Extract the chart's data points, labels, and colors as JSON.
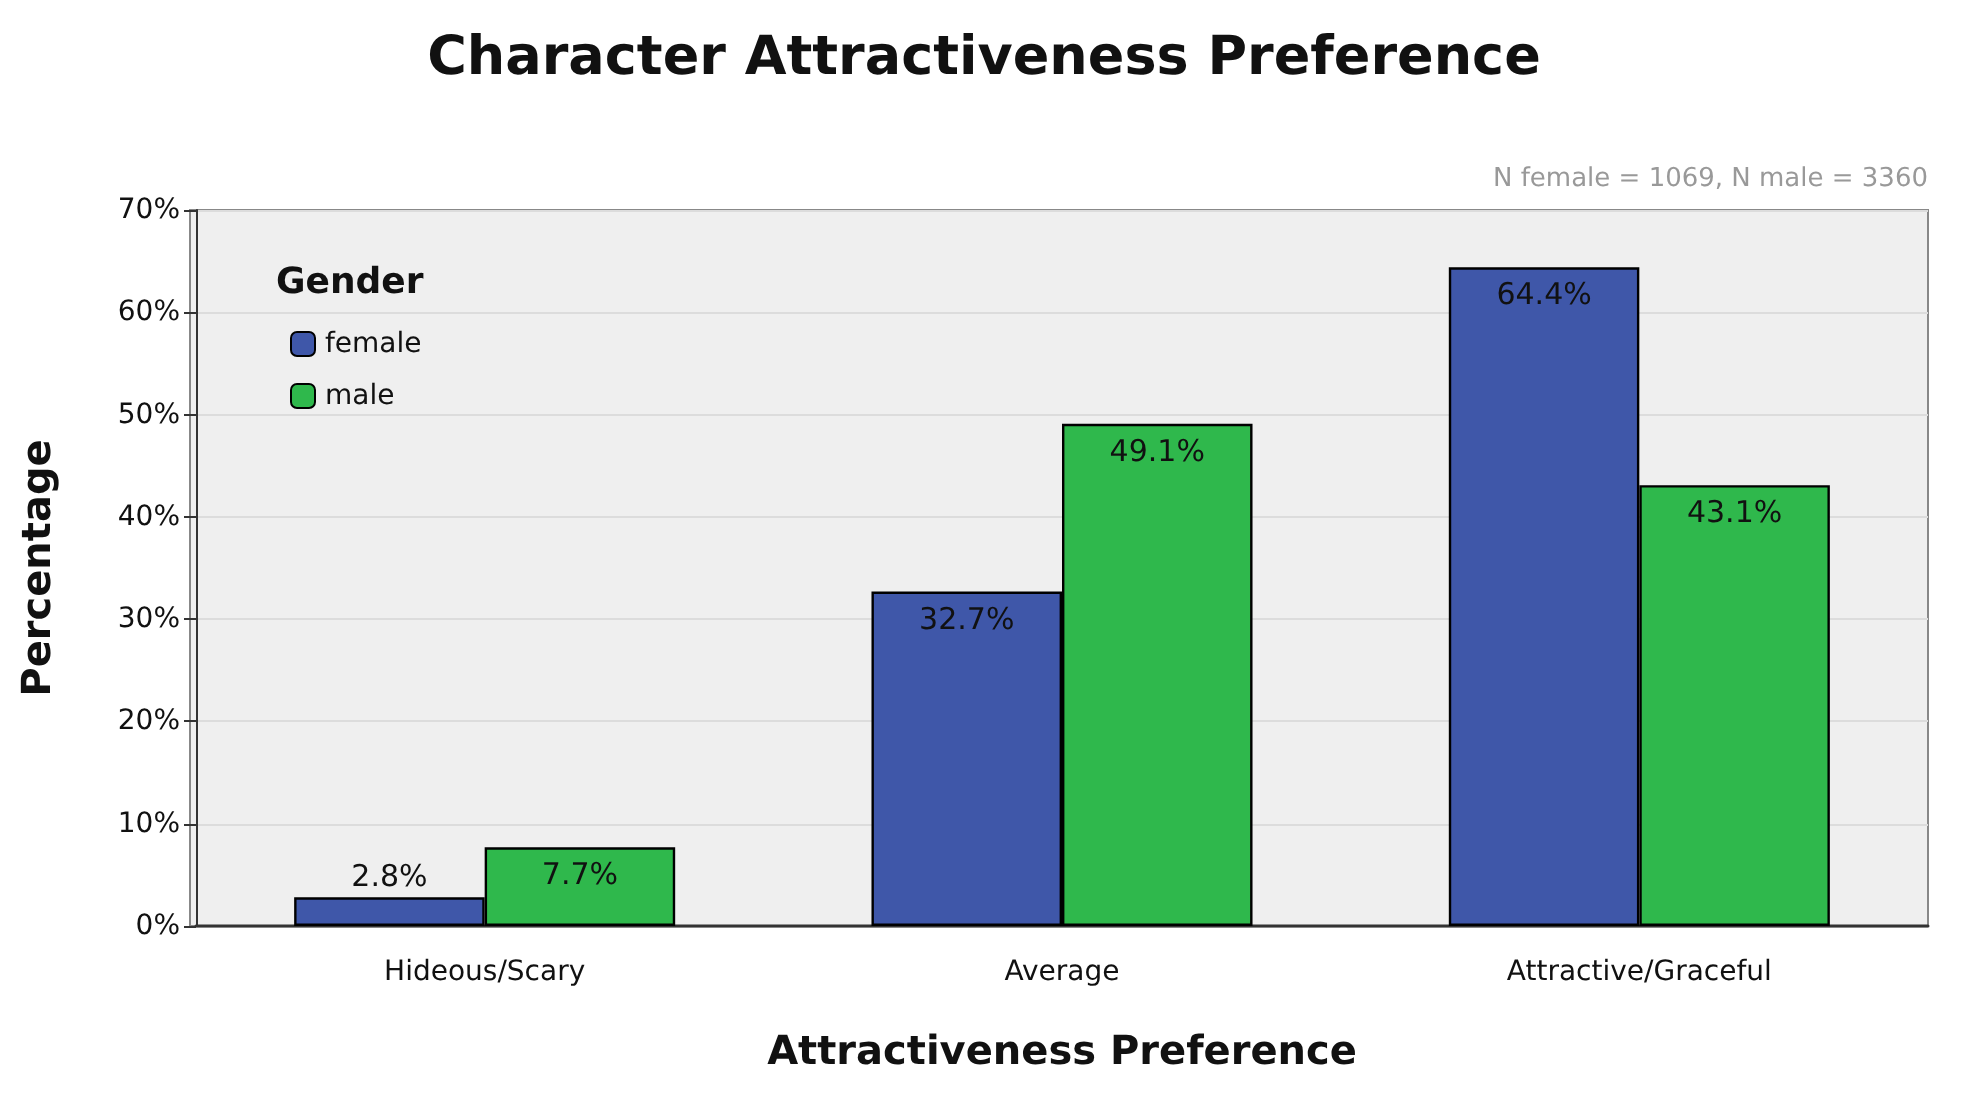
{
  "chart_data": {
    "type": "bar",
    "title": "Character Attractiveness Preference",
    "xlabel": "Attractiveness Preference",
    "ylabel": "Percentage",
    "legend_title": "Gender",
    "annotations": [
      "N female = 1069, N male = 3360"
    ],
    "categories": [
      "Hideous/Scary",
      "Average",
      "Attractive/Graceful"
    ],
    "series": [
      {
        "name": "female",
        "color": "#3f57a9",
        "values": [
          2.8,
          32.7,
          64.4
        ],
        "value_labels": [
          "2.8%",
          "32.7%",
          "64.4%"
        ]
      },
      {
        "name": "male",
        "color": "#2fb84c",
        "values": [
          7.7,
          49.1,
          43.1
        ],
        "value_labels": [
          "7.7%",
          "49.1%",
          "43.1%"
        ]
      }
    ],
    "ylim": [
      0,
      70
    ],
    "yticks": [
      {
        "value": 0,
        "label": "0%"
      },
      {
        "value": 10,
        "label": "10%"
      },
      {
        "value": 20,
        "label": "20%"
      },
      {
        "value": 30,
        "label": "30%"
      },
      {
        "value": 40,
        "label": "40%"
      },
      {
        "value": 50,
        "label": "50%"
      },
      {
        "value": 60,
        "label": "60%"
      },
      {
        "value": 70,
        "label": "70%"
      }
    ],
    "grid": "y",
    "legend": "top left"
  }
}
